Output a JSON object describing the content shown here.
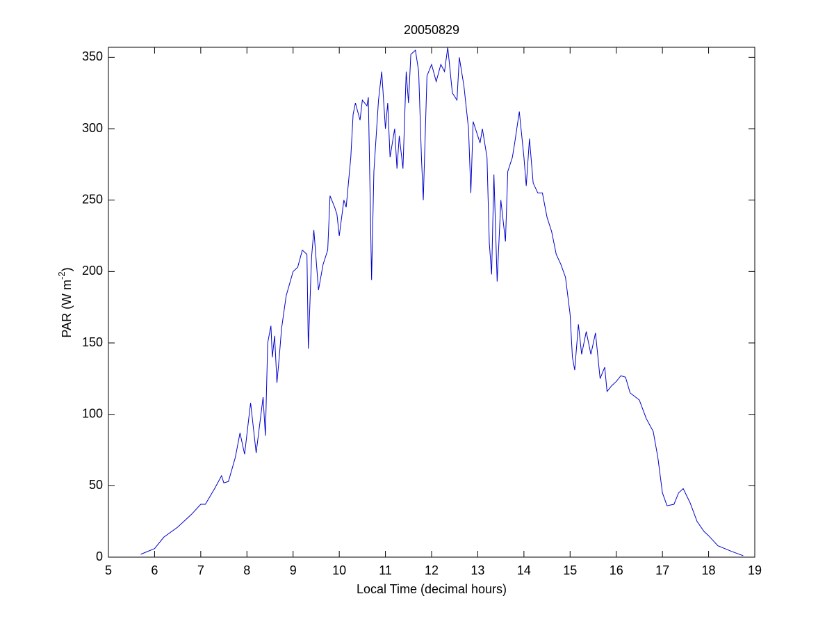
{
  "chart_data": {
    "type": "line",
    "title": "20050829",
    "xlabel": "Local Time (decimal hours)",
    "ylabel_parts": [
      "PAR (W m",
      "-2",
      ")"
    ],
    "xlim": [
      5,
      19
    ],
    "xticks": [
      5,
      6,
      7,
      8,
      9,
      10,
      11,
      12,
      13,
      14,
      15,
      16,
      17,
      18,
      19
    ],
    "ylim": [
      0,
      357
    ],
    "yticks": [
      0,
      50,
      100,
      150,
      200,
      250,
      300,
      350
    ],
    "series": [
      {
        "color": "#0000cc",
        "x": [
          5.7,
          6.0,
          6.2,
          6.5,
          6.8,
          7.0,
          7.1,
          7.3,
          7.45,
          7.5,
          7.6,
          7.75,
          7.85,
          7.95,
          8.05,
          8.08,
          8.2,
          8.35,
          8.4,
          8.45,
          8.52,
          8.55,
          8.6,
          8.65,
          8.7,
          8.75,
          8.85,
          9.0,
          9.1,
          9.2,
          9.3,
          9.33,
          9.4,
          9.45,
          9.55,
          9.65,
          9.75,
          9.8,
          9.9,
          9.95,
          10.0,
          10.1,
          10.15,
          10.25,
          10.3,
          10.35,
          10.45,
          10.5,
          10.6,
          10.63,
          10.67,
          10.7,
          10.75,
          10.85,
          10.92,
          11.0,
          11.05,
          11.1,
          11.2,
          11.25,
          11.3,
          11.38,
          11.45,
          11.5,
          11.55,
          11.65,
          11.72,
          11.78,
          11.82,
          11.9,
          12.0,
          12.1,
          12.2,
          12.28,
          12.35,
          12.45,
          12.55,
          12.6,
          12.7,
          12.8,
          12.85,
          12.9,
          13.05,
          13.1,
          13.2,
          13.25,
          13.3,
          13.35,
          13.42,
          13.5,
          13.6,
          13.65,
          13.75,
          13.8,
          13.9,
          14.0,
          14.05,
          14.12,
          14.2,
          14.3,
          14.4,
          14.5,
          14.6,
          14.7,
          14.8,
          14.9,
          15.0,
          15.05,
          15.1,
          15.18,
          15.25,
          15.35,
          15.45,
          15.55,
          15.65,
          15.75,
          15.8,
          15.9,
          16.0,
          16.1,
          16.2,
          16.3,
          16.5,
          16.65,
          16.8,
          16.9,
          17.0,
          17.1,
          17.25,
          17.35,
          17.45,
          17.6,
          17.75,
          17.9,
          18.0,
          18.2,
          18.5,
          18.75
        ],
        "values": [
          2,
          6,
          14,
          21,
          30,
          37,
          37,
          48,
          57,
          52,
          53,
          70,
          87,
          72,
          100,
          108,
          73,
          112,
          85,
          150,
          162,
          140,
          155,
          122,
          140,
          160,
          183,
          200,
          203,
          215,
          212,
          146,
          210,
          229,
          187,
          205,
          215,
          253,
          245,
          240,
          225,
          250,
          245,
          280,
          310,
          318,
          306,
          320,
          316,
          322,
          250,
          194,
          270,
          320,
          340,
          300,
          318,
          280,
          300,
          272,
          295,
          272,
          340,
          318,
          352,
          355,
          340,
          280,
          250,
          337,
          345,
          333,
          345,
          340,
          357,
          325,
          320,
          350,
          330,
          300,
          255,
          305,
          290,
          300,
          280,
          220,
          198,
          268,
          193,
          250,
          221,
          270,
          280,
          290,
          312,
          280,
          260,
          293,
          262,
          255,
          255,
          238,
          228,
          212,
          205,
          196,
          170,
          140,
          131,
          163,
          142,
          158,
          142,
          157,
          125,
          133,
          116,
          120,
          123,
          127,
          126,
          115,
          110,
          97,
          88,
          70,
          45,
          36,
          37,
          45,
          48,
          38,
          25,
          18,
          15,
          8,
          4,
          1
        ]
      }
    ]
  }
}
